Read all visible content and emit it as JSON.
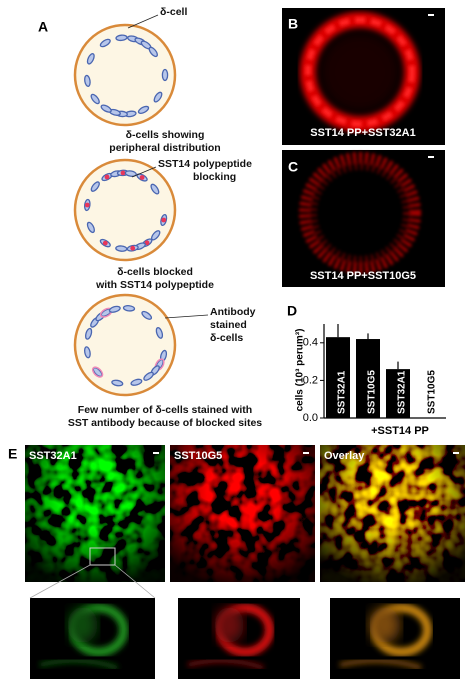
{
  "panel_a": {
    "label": "A",
    "diagrams": [
      {
        "callout": [
          "δ-cell"
        ],
        "caption": [
          "δ-cells showing",
          "peripheral distribution"
        ]
      },
      {
        "callout": [
          "SST14 polypeptide",
          "blocking"
        ],
        "caption": [
          "δ-cells blocked",
          "with SST14 polypeptide"
        ]
      },
      {
        "callout": [
          "Antibody",
          "stained",
          "δ-cells"
        ],
        "caption": [
          "Few number of δ-cells stained with",
          "SST  antibody because of blocked sites"
        ]
      }
    ]
  },
  "panel_b": {
    "label": "B",
    "caption": "SST14 PP+SST32A1"
  },
  "panel_c": {
    "label": "C",
    "caption": "SST14 PP+SST10G5"
  },
  "panel_d": {
    "label": "D"
  },
  "chart_data": {
    "type": "bar",
    "y_label": "cells (10³ perum³)",
    "categories": [
      "SST32A1",
      "SST10G5",
      "SST32A1",
      "SST10G5"
    ],
    "group_label": "+SST14 PP",
    "values": [
      0.43,
      0.42,
      0.26,
      0
    ],
    "errors": [
      0.07,
      0.03,
      0.04,
      null
    ],
    "color": "#000000",
    "ylim": [
      0,
      0.5
    ],
    "yticks": [
      {
        "value": 0,
        "label": "0.0"
      },
      0.2,
      0.4
    ]
  },
  "panel_e": {
    "label": "E",
    "images": [
      "SST32A1",
      "SST10G5",
      "Overlay"
    ]
  }
}
